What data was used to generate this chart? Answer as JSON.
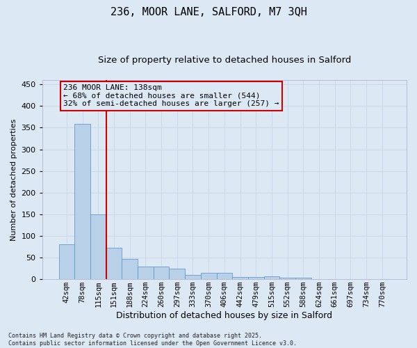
{
  "title1": "236, MOOR LANE, SALFORD, M7 3QH",
  "title2": "Size of property relative to detached houses in Salford",
  "xlabel": "Distribution of detached houses by size in Salford",
  "ylabel": "Number of detached properties",
  "categories": [
    "42sqm",
    "78sqm",
    "115sqm",
    "151sqm",
    "188sqm",
    "224sqm",
    "260sqm",
    "297sqm",
    "333sqm",
    "370sqm",
    "406sqm",
    "442sqm",
    "479sqm",
    "515sqm",
    "552sqm",
    "588sqm",
    "624sqm",
    "661sqm",
    "697sqm",
    "734sqm",
    "770sqm"
  ],
  "values": [
    80,
    358,
    150,
    72,
    47,
    30,
    30,
    25,
    10,
    14,
    14,
    5,
    5,
    7,
    3,
    3,
    1,
    1,
    1,
    1,
    0
  ],
  "bar_color": "#b8d0e8",
  "bar_edge_color": "#6699cc",
  "vline_color": "#cc0000",
  "vline_x_index": 2.5,
  "annotation_text": "236 MOOR LANE: 138sqm\n← 68% of detached houses are smaller (544)\n32% of semi-detached houses are larger (257) →",
  "annotation_box_edgecolor": "#cc0000",
  "grid_color": "#c8d8e8",
  "background_color": "#dce8f4",
  "footer_text": "Contains HM Land Registry data © Crown copyright and database right 2025.\nContains public sector information licensed under the Open Government Licence v3.0.",
  "ylim": [
    0,
    460
  ],
  "yticks": [
    0,
    50,
    100,
    150,
    200,
    250,
    300,
    350,
    400,
    450
  ],
  "title1_fontsize": 11,
  "title2_fontsize": 9.5,
  "xlabel_fontsize": 9,
  "ylabel_fontsize": 8,
  "tick_fontsize": 8,
  "xtick_fontsize": 7.5,
  "annot_fontsize": 8,
  "footer_fontsize": 6
}
